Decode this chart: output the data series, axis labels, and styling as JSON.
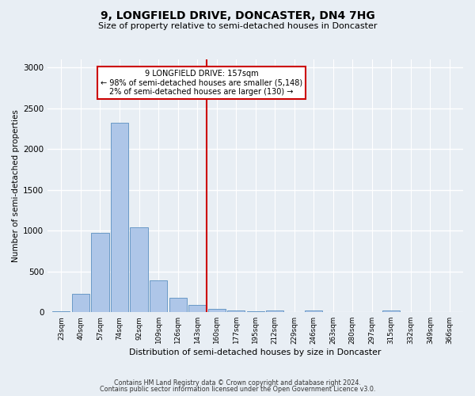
{
  "title": "9, LONGFIELD DRIVE, DONCASTER, DN4 7HG",
  "subtitle": "Size of property relative to semi-detached houses in Doncaster",
  "xlabel": "Distribution of semi-detached houses by size in Doncaster",
  "ylabel": "Number of semi-detached properties",
  "categories": [
    "23sqm",
    "40sqm",
    "57sqm",
    "74sqm",
    "92sqm",
    "109sqm",
    "126sqm",
    "143sqm",
    "160sqm",
    "177sqm",
    "195sqm",
    "212sqm",
    "229sqm",
    "246sqm",
    "263sqm",
    "280sqm",
    "297sqm",
    "315sqm",
    "332sqm",
    "349sqm",
    "366sqm"
  ],
  "bar_values": [
    15,
    230,
    970,
    2320,
    1040,
    390,
    180,
    85,
    40,
    20,
    10,
    25,
    5,
    20,
    5,
    5,
    0,
    20,
    5,
    5,
    5
  ],
  "bar_color": "#aec6e8",
  "bar_edge_color": "#5a8fc0",
  "vline_color": "#cc0000",
  "annotation_line1": "9 LONGFIELD DRIVE: 157sqm",
  "annotation_line2": "← 98% of semi-detached houses are smaller (5,148)",
  "annotation_line3": "2% of semi-detached houses are larger (130) →",
  "annotation_box_color": "#cc0000",
  "ylim": [
    0,
    3100
  ],
  "yticks": [
    0,
    500,
    1000,
    1500,
    2000,
    2500,
    3000
  ],
  "footer1": "Contains HM Land Registry data © Crown copyright and database right 2024.",
  "footer2": "Contains public sector information licensed under the Open Government Licence v3.0.",
  "bg_color": "#e8eef4",
  "grid_color": "#ffffff"
}
